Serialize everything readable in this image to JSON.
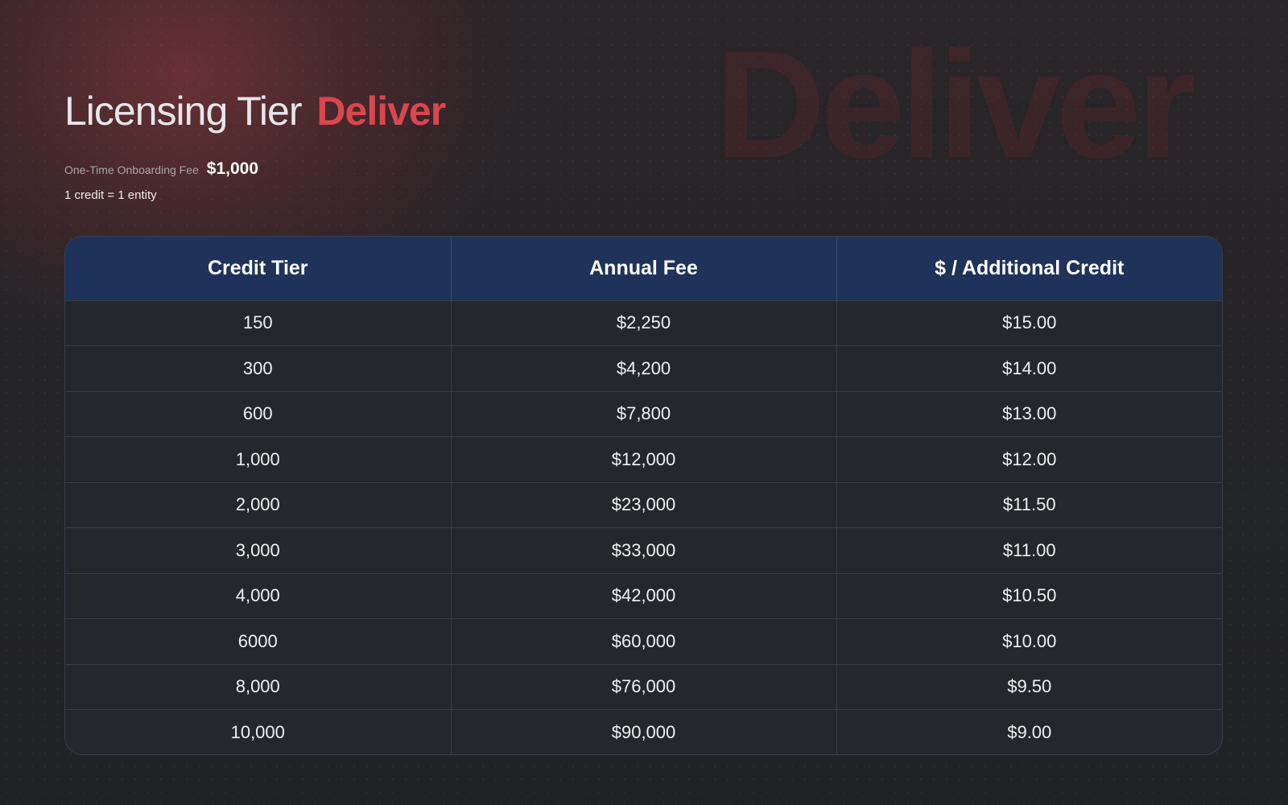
{
  "header": {
    "title_prefix": "Licensing Tier",
    "title_accent": "Deliver",
    "onboarding_fee_label": "One-Time Onboarding Fee",
    "onboarding_fee_value": "$1,000",
    "credit_note": "1 credit = 1 entity"
  },
  "watermark": "Deliver",
  "table": {
    "columns": [
      "Credit Tier",
      "Annual Fee",
      "$ / Additional Credit"
    ],
    "rows": [
      [
        "150",
        "$2,250",
        "$15.00"
      ],
      [
        "300",
        "$4,200",
        "$14.00"
      ],
      [
        "600",
        "$7,800",
        "$13.00"
      ],
      [
        "1,000",
        "$12,000",
        "$12.00"
      ],
      [
        "2,000",
        "$23,000",
        "$11.50"
      ],
      [
        "3,000",
        "$33,000",
        "$11.00"
      ],
      [
        "4,000",
        "$42,000",
        "$10.50"
      ],
      [
        "6000",
        "$60,000",
        "$10.00"
      ],
      [
        "8,000",
        "$76,000",
        "$9.50"
      ],
      [
        "10,000",
        "$90,000",
        "$9.00"
      ]
    ]
  },
  "colors": {
    "accent": "#d9474d",
    "table_header_bg": "#1f3259",
    "page_bg": "#232428"
  }
}
